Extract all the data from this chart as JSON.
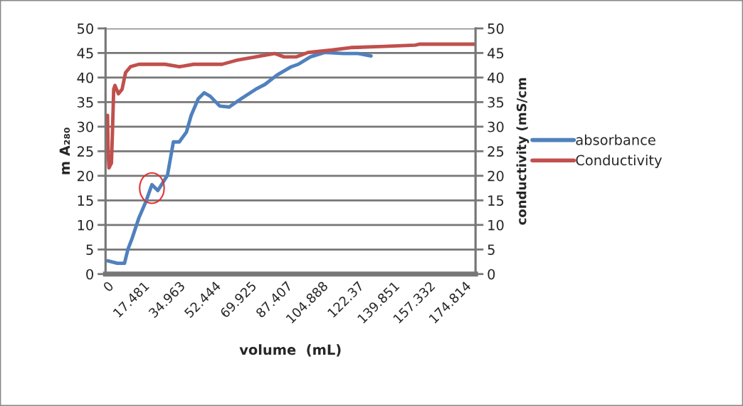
{
  "chart_data": {
    "type": "line",
    "xlabel": "volume  (mL)",
    "ylabel": "m A₂₈₀",
    "y2label": "conductivity (mS/cm",
    "xlim": [
      -1,
      180
    ],
    "xticks": [
      0,
      17.481,
      34.963,
      52.444,
      69.925,
      87.407,
      104.888,
      122.37,
      139.851,
      157.332,
      174.814
    ],
    "ylim": [
      0,
      50
    ],
    "yticks": [
      0,
      5,
      10,
      15,
      20,
      25,
      30,
      35,
      40,
      45,
      50
    ],
    "y2lim": [
      0,
      50
    ],
    "y2ticks": [
      0,
      5,
      10,
      15,
      20,
      25,
      30,
      35,
      40,
      45,
      50
    ],
    "grid": "y",
    "legend": "right",
    "line_style": "solid",
    "marker": "none",
    "series": [
      {
        "name": "absorbance",
        "color": "#4f81bd",
        "x": [
          0,
          4.8,
          8.3,
          10.0,
          11.8,
          15.3,
          18.8,
          21.7,
          24.6,
          29.3,
          32.2,
          35.1,
          38.6,
          40.9,
          44.4,
          47.3,
          50.2,
          54.9,
          59.5,
          65.4,
          72.4,
          77.0,
          82.9,
          89.9,
          93.3,
          99.2,
          106.2,
          115.5,
          122.5,
          128.9
        ],
        "values": [
          2.7,
          2.2,
          2.2,
          5.1,
          7.0,
          11.4,
          14.8,
          18.2,
          17.0,
          20.1,
          26.9,
          26.9,
          28.9,
          32.3,
          35.7,
          36.9,
          36.2,
          34.2,
          34.0,
          35.7,
          37.6,
          38.6,
          40.5,
          42.2,
          42.7,
          44.2,
          45.1,
          44.9,
          44.9,
          44.4
        ]
      },
      {
        "name": "Conductivity",
        "color": "#c0504d",
        "axis": "y2",
        "x": [
          0,
          0.3,
          0.7,
          1.9,
          2.4,
          3.0,
          3.6,
          5.3,
          7.1,
          8.8,
          11.2,
          15.3,
          28.1,
          35.1,
          42.1,
          56.0,
          63.0,
          72.4,
          81.7,
          86.3,
          92.2,
          98.0,
          109.7,
          119.0,
          133.0,
          150.5,
          152.8,
          179.5
        ],
        "values": [
          32.3,
          24.5,
          21.6,
          22.6,
          28.9,
          37.6,
          38.4,
          36.7,
          37.6,
          41.0,
          42.2,
          42.7,
          42.7,
          42.2,
          42.7,
          42.7,
          43.5,
          44.2,
          44.9,
          44.2,
          44.2,
          45.1,
          45.6,
          46.1,
          46.3,
          46.6,
          46.8,
          46.8
        ]
      }
    ]
  }
}
